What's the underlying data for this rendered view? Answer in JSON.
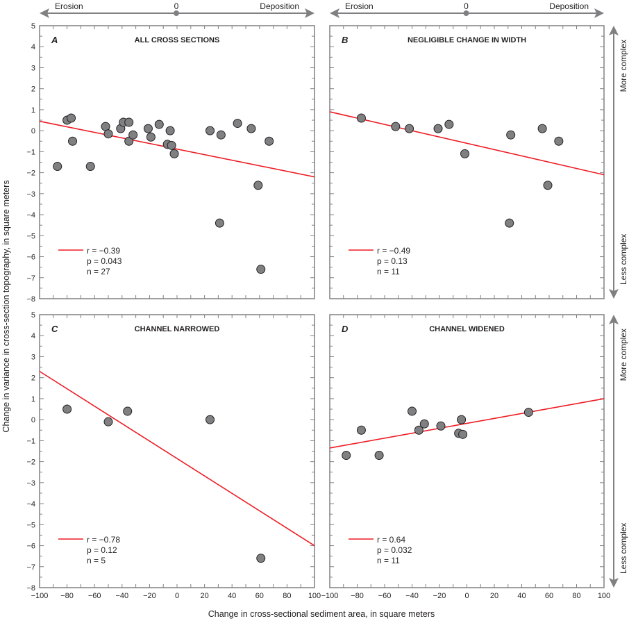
{
  "axes": {
    "xlabel": "Change in cross-sectional sediment area, in square meters",
    "ylabel": "Change in variance in cross-section topography, in square meters",
    "x_ticks": [
      "−100",
      "−80",
      "−60",
      "−40",
      "−20",
      "0",
      "20",
      "40",
      "60",
      "80",
      "100"
    ],
    "y_ticks": [
      "5",
      "4",
      "3",
      "2",
      "1",
      "0",
      "−1",
      "−2",
      "−3",
      "−4",
      "−5",
      "−6",
      "−7",
      "−8"
    ],
    "top_arrow": {
      "left": "Erosion",
      "center": "0",
      "right": "Deposition"
    },
    "side_arrow": {
      "top": "More complex",
      "bottom": "Less complex"
    }
  },
  "colors": {
    "points": "#808083",
    "line": "#ed1c24",
    "frame": "#808083"
  },
  "chart_data": [
    {
      "type": "scatter",
      "letter": "A",
      "title": "ALL CROSS SECTIONS",
      "xlim": [
        -100,
        100
      ],
      "ylim": [
        -8,
        5
      ],
      "points": [
        [
          -87,
          -1.7
        ],
        [
          -80,
          0.5
        ],
        [
          -77,
          0.6
        ],
        [
          -76,
          -0.5
        ],
        [
          -63,
          -1.7
        ],
        [
          -52,
          0.2
        ],
        [
          -50,
          -0.15
        ],
        [
          -41,
          0.1
        ],
        [
          -39,
          0.4
        ],
        [
          -35,
          0.4
        ],
        [
          -35,
          -0.5
        ],
        [
          -32,
          -0.2
        ],
        [
          -21,
          0.1
        ],
        [
          -19,
          -0.3
        ],
        [
          -13,
          0.3
        ],
        [
          -7,
          -0.65
        ],
        [
          -5,
          0
        ],
        [
          -4,
          -0.7
        ],
        [
          -2,
          -1.1
        ],
        [
          24,
          0
        ],
        [
          32,
          -0.2
        ],
        [
          44,
          0.35
        ],
        [
          54,
          0.1
        ],
        [
          59,
          -2.6
        ],
        [
          31,
          -4.4
        ],
        [
          61,
          -6.6
        ],
        [
          67,
          -0.5
        ]
      ],
      "fit_line": [
        [
          -100,
          0.45
        ],
        [
          100,
          -2.2
        ]
      ],
      "stats": {
        "r": "r = −0.39",
        "p": "p = 0.043",
        "n": "n = 27"
      }
    },
    {
      "type": "scatter",
      "letter": "B",
      "title": "NEGLIGIBLE CHANGE IN WIDTH",
      "xlim": [
        -100,
        100
      ],
      "ylim": [
        -8,
        5
      ],
      "points": [
        [
          -77,
          0.6
        ],
        [
          -52,
          0.2
        ],
        [
          -42,
          0.1
        ],
        [
          -21,
          0.1
        ],
        [
          -13,
          0.3
        ],
        [
          -1.5,
          -1.1
        ],
        [
          32,
          -0.2
        ],
        [
          55,
          0.1
        ],
        [
          67,
          -0.5
        ],
        [
          59,
          -2.6
        ],
        [
          31,
          -4.4
        ]
      ],
      "fit_line": [
        [
          -100,
          0.9
        ],
        [
          100,
          -2.1
        ]
      ],
      "stats": {
        "r": "r = −0.49",
        "p": "p = 0.13",
        "n": "n = 11"
      }
    },
    {
      "type": "scatter",
      "letter": "C",
      "title": "CHANNEL NARROWED",
      "xlim": [
        -100,
        100
      ],
      "ylim": [
        -8,
        5
      ],
      "points": [
        [
          -80,
          0.5
        ],
        [
          -50,
          -0.1
        ],
        [
          -36,
          0.4
        ],
        [
          24,
          0
        ],
        [
          61,
          -6.6
        ]
      ],
      "fit_line": [
        [
          -100,
          2.3
        ],
        [
          100,
          -6.0
        ]
      ],
      "stats": {
        "r": "r = −0.78",
        "p": "p = 0.12",
        "n": "n = 5"
      }
    },
    {
      "type": "scatter",
      "letter": "D",
      "title": "CHANNEL WIDENED",
      "xlim": [
        -100,
        100
      ],
      "ylim": [
        -8,
        5
      ],
      "points": [
        [
          -88,
          -1.7
        ],
        [
          -77,
          -0.5
        ],
        [
          -64,
          -1.7
        ],
        [
          -40,
          0.4
        ],
        [
          -35,
          -0.5
        ],
        [
          -31,
          -0.2
        ],
        [
          -19,
          -0.3
        ],
        [
          -6,
          -0.65
        ],
        [
          -4,
          0
        ],
        [
          -3,
          -0.7
        ],
        [
          45,
          0.35
        ]
      ],
      "fit_line": [
        [
          -100,
          -1.35
        ],
        [
          100,
          1.0
        ]
      ],
      "stats": {
        "r": "r = 0.64",
        "p": "p = 0.032",
        "n": "n = 11"
      }
    }
  ]
}
